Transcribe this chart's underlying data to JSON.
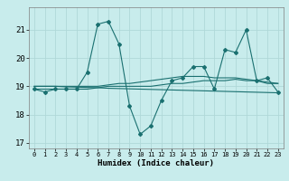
{
  "xlabel": "Humidex (Indice chaleur)",
  "ylabel": "",
  "background_color": "#c8ecec",
  "grid_color": "#b0d8d8",
  "line_color": "#1a7070",
  "xlim": [
    -0.5,
    23.5
  ],
  "ylim": [
    16.8,
    21.8
  ],
  "yticks": [
    17,
    18,
    19,
    20,
    21
  ],
  "xticks": [
    0,
    1,
    2,
    3,
    4,
    5,
    6,
    7,
    8,
    9,
    10,
    11,
    12,
    13,
    14,
    15,
    16,
    17,
    18,
    19,
    20,
    21,
    22,
    23
  ],
  "main_y": [
    18.9,
    18.8,
    18.9,
    18.9,
    18.9,
    19.5,
    21.2,
    21.3,
    20.5,
    18.3,
    17.3,
    17.6,
    18.5,
    19.2,
    19.3,
    19.7,
    19.7,
    18.9,
    20.3,
    20.2,
    21.0,
    19.2,
    19.3,
    18.8
  ],
  "line2_y": [
    18.9,
    18.9,
    18.9,
    18.9,
    18.9,
    18.9,
    18.95,
    19.0,
    19.0,
    19.0,
    19.0,
    19.0,
    19.05,
    19.1,
    19.1,
    19.15,
    19.2,
    19.2,
    19.2,
    19.25,
    19.2,
    19.2,
    19.1,
    19.1
  ],
  "line3_y": [
    19.0,
    19.0,
    19.0,
    18.98,
    18.97,
    18.96,
    18.95,
    18.93,
    18.92,
    18.91,
    18.9,
    18.89,
    18.88,
    18.87,
    18.86,
    18.85,
    18.84,
    18.83,
    18.82,
    18.81,
    18.8,
    18.79,
    18.78,
    18.77
  ],
  "line4_y": [
    19.0,
    19.0,
    19.0,
    19.0,
    19.0,
    19.0,
    19.0,
    19.05,
    19.1,
    19.1,
    19.15,
    19.2,
    19.25,
    19.3,
    19.35,
    19.35,
    19.35,
    19.3,
    19.3,
    19.3,
    19.25,
    19.2,
    19.15,
    19.1
  ]
}
